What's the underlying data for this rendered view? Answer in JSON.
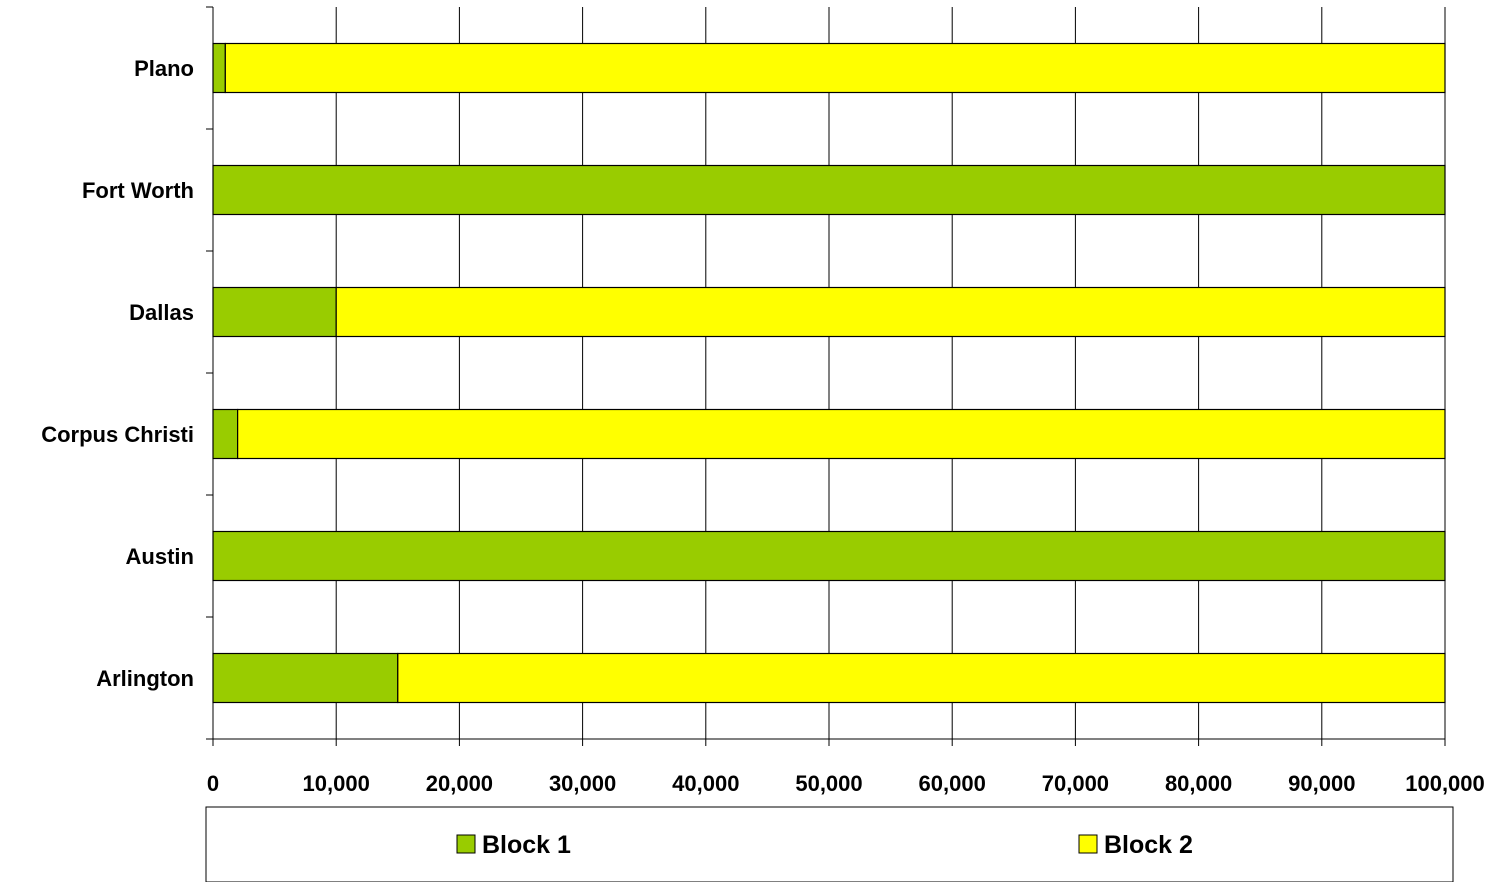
{
  "chart_data": {
    "type": "bar",
    "orientation": "horizontal",
    "stacked": true,
    "categories": [
      "Arlington",
      "Austin",
      "Corpus Christi",
      "Dallas",
      "Fort Worth",
      "Plano"
    ],
    "series": [
      {
        "name": "Block 1",
        "color": "#99cc00",
        "values": [
          15000,
          100000,
          2000,
          10000,
          100000,
          1000
        ]
      },
      {
        "name": "Block 2",
        "color": "#ffff00",
        "values": [
          85000,
          0,
          98000,
          90000,
          0,
          99000
        ]
      }
    ],
    "xlim": [
      0,
      100000
    ],
    "xticks": [
      0,
      10000,
      20000,
      30000,
      40000,
      50000,
      60000,
      70000,
      80000,
      90000,
      100000
    ],
    "xtick_labels": [
      "0",
      "10,000",
      "20,000",
      "30,000",
      "40,000",
      "50,000",
      "60,000",
      "70,000",
      "80,000",
      "90,000",
      "100,000"
    ],
    "title": "",
    "xlabel": "",
    "ylabel": "",
    "grid": "vertical",
    "legend": "bottom"
  }
}
